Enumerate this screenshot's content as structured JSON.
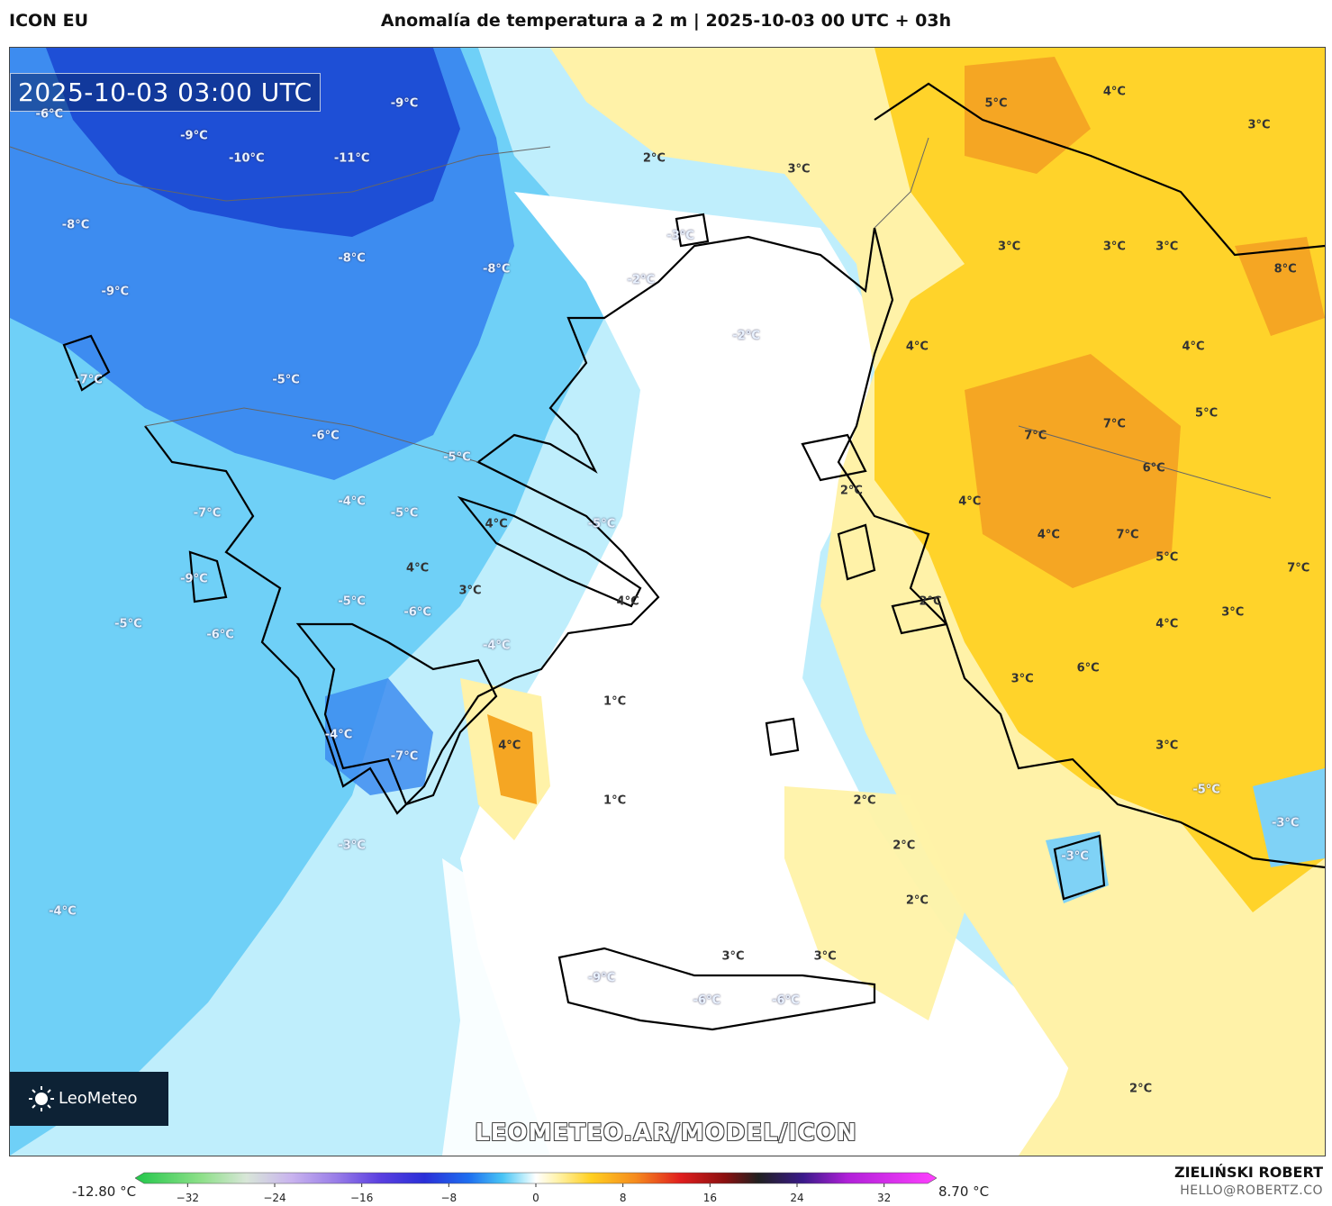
{
  "header": {
    "model": "ICON EU",
    "title": "Anomalía de temperatura a 2 m | 2025-10-03 00 UTC + 03h"
  },
  "map": {
    "timestamp": "2025-10-03 03:00 UTC",
    "logo_text": "LeoMeteo",
    "watermark": "LEOMETEO.AR/MODEL/ICON",
    "colors": {
      "cold_deep": "#1e4fd6",
      "cold_mid": "#3d8cf0",
      "cold_light": "#7fd2f6",
      "cold_pale": "#bfeefc",
      "neutral": "#ffffff",
      "warm_pale": "#fff2a8",
      "warm_mid": "#ffd32a",
      "warm_deep": "#f5a623",
      "coast": "#000000"
    },
    "labels": [
      {
        "text": "-6°C",
        "lon": 0.03,
        "lat": 0.06,
        "kind": "cold"
      },
      {
        "text": "-9°C",
        "lon": 0.3,
        "lat": 0.05,
        "kind": "cold"
      },
      {
        "text": "-9°C",
        "lon": 0.14,
        "lat": 0.08,
        "kind": "cold"
      },
      {
        "text": "-10°C",
        "lon": 0.18,
        "lat": 0.1,
        "kind": "cold"
      },
      {
        "text": "-11°C",
        "lon": 0.26,
        "lat": 0.1,
        "kind": "cold"
      },
      {
        "text": "-8°C",
        "lon": 0.05,
        "lat": 0.16,
        "kind": "cold"
      },
      {
        "text": "-8°C",
        "lon": 0.26,
        "lat": 0.19,
        "kind": "cold"
      },
      {
        "text": "-8°C",
        "lon": 0.37,
        "lat": 0.2,
        "kind": "cold"
      },
      {
        "text": "-9°C",
        "lon": 0.08,
        "lat": 0.22,
        "kind": "cold"
      },
      {
        "text": "-7°C",
        "lon": 0.06,
        "lat": 0.3,
        "kind": "cold"
      },
      {
        "text": "-5°C",
        "lon": 0.21,
        "lat": 0.3,
        "kind": "cold"
      },
      {
        "text": "-6°C",
        "lon": 0.24,
        "lat": 0.35,
        "kind": "cold"
      },
      {
        "text": "-5°C",
        "lon": 0.34,
        "lat": 0.37,
        "kind": "cold"
      },
      {
        "text": "-4°C",
        "lon": 0.26,
        "lat": 0.41,
        "kind": "cold"
      },
      {
        "text": "-5°C",
        "lon": 0.3,
        "lat": 0.42,
        "kind": "cold"
      },
      {
        "text": "-7°C",
        "lon": 0.15,
        "lat": 0.42,
        "kind": "cold"
      },
      {
        "text": "-5°C",
        "lon": 0.45,
        "lat": 0.43,
        "kind": "cold"
      },
      {
        "text": "-9°C",
        "lon": 0.14,
        "lat": 0.48,
        "kind": "cold"
      },
      {
        "text": "-5°C",
        "lon": 0.09,
        "lat": 0.52,
        "kind": "cold"
      },
      {
        "text": "-6°C",
        "lon": 0.16,
        "lat": 0.53,
        "kind": "cold"
      },
      {
        "text": "-5°C",
        "lon": 0.26,
        "lat": 0.5,
        "kind": "cold"
      },
      {
        "text": "-6°C",
        "lon": 0.31,
        "lat": 0.51,
        "kind": "cold"
      },
      {
        "text": "-4°C",
        "lon": 0.37,
        "lat": 0.54,
        "kind": "cold"
      },
      {
        "text": "-4°C",
        "lon": 0.25,
        "lat": 0.62,
        "kind": "cold"
      },
      {
        "text": "-7°C",
        "lon": 0.3,
        "lat": 0.64,
        "kind": "cold"
      },
      {
        "text": "-3°C",
        "lon": 0.26,
        "lat": 0.72,
        "kind": "cold"
      },
      {
        "text": "-4°C",
        "lon": 0.04,
        "lat": 0.78,
        "kind": "cold"
      },
      {
        "text": "-2°C",
        "lon": 0.48,
        "lat": 0.21,
        "kind": "cold"
      },
      {
        "text": "-3°C",
        "lon": 0.51,
        "lat": 0.17,
        "kind": "cold"
      },
      {
        "text": "-2°C",
        "lon": 0.56,
        "lat": 0.26,
        "kind": "cold"
      },
      {
        "text": "-9°C",
        "lon": 0.45,
        "lat": 0.84,
        "kind": "cold"
      },
      {
        "text": "-6°C",
        "lon": 0.53,
        "lat": 0.86,
        "kind": "cold"
      },
      {
        "text": "-6°C",
        "lon": 0.59,
        "lat": 0.86,
        "kind": "cold"
      },
      {
        "text": "-3°C",
        "lon": 0.81,
        "lat": 0.73,
        "kind": "cold"
      },
      {
        "text": "-5°C",
        "lon": 0.91,
        "lat": 0.67,
        "kind": "cold"
      },
      {
        "text": "-3°C",
        "lon": 0.97,
        "lat": 0.7,
        "kind": "cold"
      },
      {
        "text": "2°C",
        "lon": 0.49,
        "lat": 0.1,
        "kind": "warm"
      },
      {
        "text": "3°C",
        "lon": 0.6,
        "lat": 0.11,
        "kind": "warm"
      },
      {
        "text": "5°C",
        "lon": 0.75,
        "lat": 0.05,
        "kind": "warm"
      },
      {
        "text": "4°C",
        "lon": 0.84,
        "lat": 0.04,
        "kind": "warm"
      },
      {
        "text": "3°C",
        "lon": 0.95,
        "lat": 0.07,
        "kind": "warm"
      },
      {
        "text": "3°C",
        "lon": 0.76,
        "lat": 0.18,
        "kind": "warm"
      },
      {
        "text": "3°C",
        "lon": 0.84,
        "lat": 0.18,
        "kind": "warm"
      },
      {
        "text": "3°C",
        "lon": 0.88,
        "lat": 0.18,
        "kind": "warm"
      },
      {
        "text": "8°C",
        "lon": 0.97,
        "lat": 0.2,
        "kind": "warm"
      },
      {
        "text": "4°C",
        "lon": 0.69,
        "lat": 0.27,
        "kind": "warm"
      },
      {
        "text": "4°C",
        "lon": 0.9,
        "lat": 0.27,
        "kind": "warm"
      },
      {
        "text": "5°C",
        "lon": 0.91,
        "lat": 0.33,
        "kind": "warm"
      },
      {
        "text": "7°C",
        "lon": 0.78,
        "lat": 0.35,
        "kind": "warm"
      },
      {
        "text": "7°C",
        "lon": 0.84,
        "lat": 0.34,
        "kind": "warm"
      },
      {
        "text": "6°C",
        "lon": 0.87,
        "lat": 0.38,
        "kind": "warm"
      },
      {
        "text": "2°C",
        "lon": 0.64,
        "lat": 0.4,
        "kind": "warm"
      },
      {
        "text": "4°C",
        "lon": 0.73,
        "lat": 0.41,
        "kind": "warm"
      },
      {
        "text": "4°C",
        "lon": 0.79,
        "lat": 0.44,
        "kind": "warm"
      },
      {
        "text": "7°C",
        "lon": 0.85,
        "lat": 0.44,
        "kind": "warm"
      },
      {
        "text": "5°C",
        "lon": 0.88,
        "lat": 0.46,
        "kind": "warm"
      },
      {
        "text": "7°C",
        "lon": 0.98,
        "lat": 0.47,
        "kind": "warm"
      },
      {
        "text": "2°C",
        "lon": 0.7,
        "lat": 0.5,
        "kind": "warm"
      },
      {
        "text": "4°C",
        "lon": 0.37,
        "lat": 0.43,
        "kind": "warm"
      },
      {
        "text": "4°C",
        "lon": 0.31,
        "lat": 0.47,
        "kind": "warm"
      },
      {
        "text": "3°C",
        "lon": 0.35,
        "lat": 0.49,
        "kind": "warm"
      },
      {
        "text": "4°C",
        "lon": 0.47,
        "lat": 0.5,
        "kind": "warm"
      },
      {
        "text": "4°C",
        "lon": 0.88,
        "lat": 0.52,
        "kind": "warm"
      },
      {
        "text": "3°C",
        "lon": 0.93,
        "lat": 0.51,
        "kind": "warm"
      },
      {
        "text": "3°C",
        "lon": 0.77,
        "lat": 0.57,
        "kind": "warm"
      },
      {
        "text": "6°C",
        "lon": 0.82,
        "lat": 0.56,
        "kind": "warm"
      },
      {
        "text": "3°C",
        "lon": 0.88,
        "lat": 0.63,
        "kind": "warm"
      },
      {
        "text": "1°C",
        "lon": 0.46,
        "lat": 0.59,
        "kind": "warm"
      },
      {
        "text": "4°C",
        "lon": 0.38,
        "lat": 0.63,
        "kind": "warm"
      },
      {
        "text": "1°C",
        "lon": 0.46,
        "lat": 0.68,
        "kind": "warm"
      },
      {
        "text": "2°C",
        "lon": 0.65,
        "lat": 0.68,
        "kind": "warm"
      },
      {
        "text": "2°C",
        "lon": 0.68,
        "lat": 0.72,
        "kind": "warm"
      },
      {
        "text": "2°C",
        "lon": 0.69,
        "lat": 0.77,
        "kind": "warm"
      },
      {
        "text": "3°C",
        "lon": 0.55,
        "lat": 0.82,
        "kind": "warm"
      },
      {
        "text": "3°C",
        "lon": 0.62,
        "lat": 0.82,
        "kind": "warm"
      },
      {
        "text": "2°C",
        "lon": 0.86,
        "lat": 0.94,
        "kind": "warm"
      }
    ]
  },
  "colorbar": {
    "min_label": "-12.80 °C",
    "max_label": "8.70 °C",
    "ticks": [
      "−32",
      "−24",
      "−16",
      "−8",
      "0",
      "8",
      "16",
      "24",
      "32"
    ],
    "tick_values": [
      -32,
      -24,
      -16,
      -8,
      0,
      8,
      16,
      24,
      32
    ],
    "range": [
      -36,
      36
    ],
    "stops": [
      {
        "v": -36,
        "c": "#22c74a"
      },
      {
        "v": -30,
        "c": "#8fe08a"
      },
      {
        "v": -26,
        "c": "#d8e6d8"
      },
      {
        "v": -22,
        "c": "#c9b4ee"
      },
      {
        "v": -18,
        "c": "#9a7ee8"
      },
      {
        "v": -14,
        "c": "#5a3fe0"
      },
      {
        "v": -10,
        "c": "#2a2fd8"
      },
      {
        "v": -6,
        "c": "#1e6ff0"
      },
      {
        "v": -3,
        "c": "#48c4f5"
      },
      {
        "v": -1,
        "c": "#bfeefc"
      },
      {
        "v": 0,
        "c": "#ffffff"
      },
      {
        "v": 2,
        "c": "#fff2a8"
      },
      {
        "v": 5,
        "c": "#ffcf20"
      },
      {
        "v": 9,
        "c": "#f58a1e"
      },
      {
        "v": 13,
        "c": "#e01e1e"
      },
      {
        "v": 17,
        "c": "#8a1010"
      },
      {
        "v": 20,
        "c": "#202020"
      },
      {
        "v": 24,
        "c": "#3a1a8a"
      },
      {
        "v": 28,
        "c": "#b020d8"
      },
      {
        "v": 36,
        "c": "#ff40ff"
      }
    ]
  },
  "footer": {
    "author": "ZIELIŃSKI ROBERT",
    "email": "HELLO@ROBERTZ.CO"
  }
}
